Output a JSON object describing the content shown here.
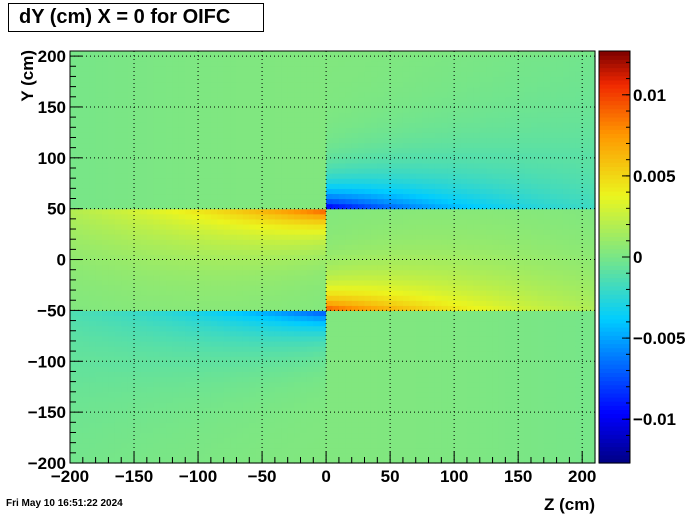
{
  "chart_data": {
    "type": "heatmap",
    "title": "dY (cm) X = 0 for OIFC",
    "xlabel": "Z (cm)",
    "ylabel": "Y (cm)",
    "xlim": [
      -200,
      210
    ],
    "ylim": [
      -200,
      205
    ],
    "zlim": [
      -0.0127,
      0.0127
    ],
    "x_ticks": [
      -200,
      -150,
      -100,
      -50,
      0,
      50,
      100,
      150,
      200
    ],
    "x_tick_labels": [
      "−200",
      "−150",
      "−100",
      "−50",
      "0",
      "50",
      "100",
      "150",
      "200"
    ],
    "y_ticks": [
      -200,
      -150,
      -100,
      -50,
      0,
      50,
      100,
      150,
      200
    ],
    "y_tick_labels": [
      "−200",
      "−150",
      "−100",
      "−50",
      "0",
      "50",
      "100",
      "150",
      "200"
    ],
    "z_ticks": [
      -0.01,
      -0.005,
      0,
      0.005,
      0.01
    ],
    "z_tick_labels": [
      "−0.01",
      "−0.005",
      "0",
      "0.005",
      "0.01"
    ],
    "grid": true,
    "colormap": "jet",
    "features": [
      {
        "y_edge": 50,
        "z_range": [
          -200,
          0
        ],
        "peak_value": 0.0095,
        "side": "below"
      },
      {
        "y_edge": 50,
        "z_range": [
          0,
          210
        ],
        "peak_value": -0.011,
        "side": "above"
      },
      {
        "y_edge": -50,
        "z_range": [
          -200,
          0
        ],
        "peak_value": -0.008,
        "side": "below"
      },
      {
        "y_edge": -50,
        "z_range": [
          0,
          210
        ],
        "peak_value": 0.0095,
        "side": "above"
      }
    ]
  },
  "footer": {
    "timestamp": "Fri May 10 16:51:22 2024"
  }
}
